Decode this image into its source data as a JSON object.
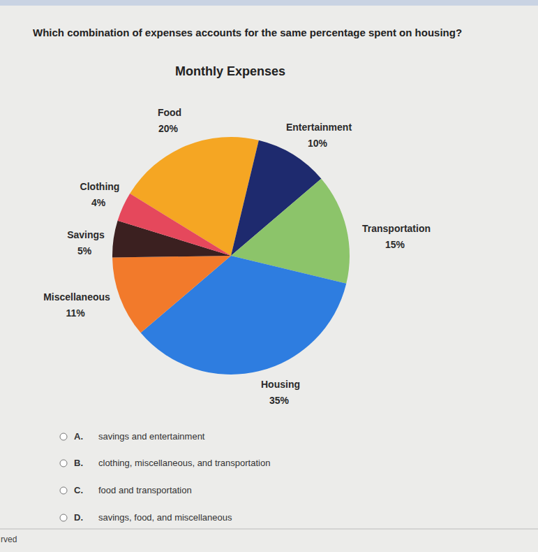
{
  "question": "Which combination of expenses accounts for the same percentage spent on housing?",
  "chart_data": {
    "type": "pie",
    "title": "Monthly Expenses",
    "categories": [
      "Food",
      "Entertainment",
      "Transportation",
      "Housing",
      "Miscellaneous",
      "Savings",
      "Clothing"
    ],
    "values": [
      20,
      10,
      15,
      35,
      11,
      5,
      4
    ],
    "value_labels": [
      "20%",
      "10%",
      "15%",
      "35%",
      "11%",
      "5%",
      "4%"
    ],
    "colors": [
      "#f5a623",
      "#1e2a6e",
      "#8cc46a",
      "#2e7de0",
      "#f27a2b",
      "#3b2020",
      "#e5485c"
    ],
    "data_labels": true
  },
  "options": [
    {
      "letter": "A.",
      "text": "savings and entertainment"
    },
    {
      "letter": "B.",
      "text": "clothing, miscellaneous, and transportation"
    },
    {
      "letter": "C.",
      "text": "food and transportation"
    },
    {
      "letter": "D.",
      "text": "savings, food, and miscellaneous"
    }
  ],
  "footer": "rved"
}
